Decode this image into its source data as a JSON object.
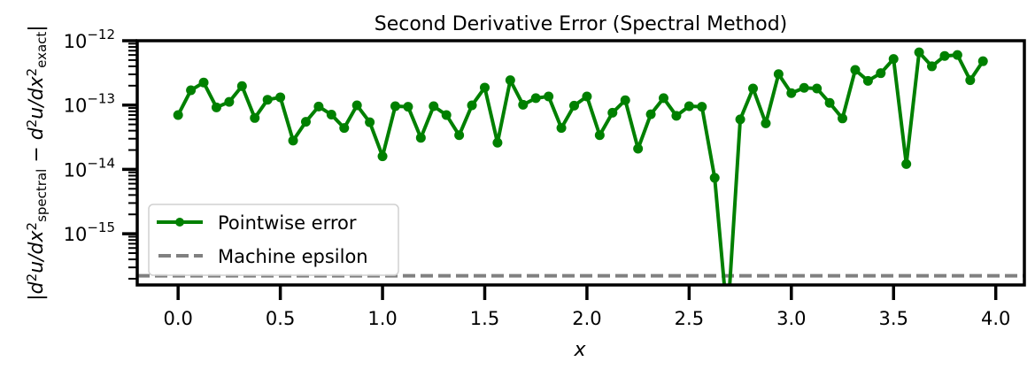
{
  "chart_data": {
    "type": "line",
    "title": "Second Derivative Error (Spectral Method)",
    "xlabel": "x",
    "ylabel_parts": [
      {
        "t": "|d",
        "s": ""
      },
      {
        "t": "2",
        "s": "sup"
      },
      {
        "t": "u/dx",
        "s": ""
      },
      {
        "t": "2",
        "s": "sup"
      },
      {
        "t": "spectral",
        "s": "sub"
      },
      {
        "t": " − d",
        "s": ""
      },
      {
        "t": "2",
        "s": "sup"
      },
      {
        "t": "u/dx",
        "s": ""
      },
      {
        "t": "2",
        "s": "sup"
      },
      {
        "t": "exact",
        "s": "sub"
      },
      {
        "t": "|",
        "s": ""
      }
    ],
    "xscale": "linear",
    "yscale": "log",
    "xlim": [
      -0.2,
      4.14
    ],
    "ylim": [
      1.6e-16,
      1e-12
    ],
    "grid": false,
    "legend_position": "lower-left",
    "x_ticks": [
      "0.0",
      "0.5",
      "1.0",
      "1.5",
      "2.0",
      "2.5",
      "3.0",
      "3.5",
      "4.0"
    ],
    "y_ticks": [
      {
        "base": "10",
        "exp": "−12",
        "value": 1e-12
      },
      {
        "base": "10",
        "exp": "−13",
        "value": 1e-13
      },
      {
        "base": "10",
        "exp": "−14",
        "value": 1e-14
      },
      {
        "base": "10",
        "exp": "−15",
        "value": 1e-15
      }
    ],
    "series": [
      {
        "name": "Pointwise error",
        "color": "#008000",
        "style": "solid-with-markers",
        "x_step": 0.0625,
        "x_start": 0,
        "values": [
          7e-14,
          1.7e-13,
          2.24e-13,
          9.2e-14,
          1.12e-13,
          1.97e-13,
          6.3e-14,
          1.21e-13,
          1.32e-13,
          2.8e-14,
          5.5e-14,
          9.5e-14,
          7.1e-14,
          4.4e-14,
          9.9e-14,
          5.4e-14,
          1.6e-14,
          9.6e-14,
          9.4e-14,
          3.1e-14,
          9.6e-14,
          7e-14,
          3.4e-14,
          9.9e-14,
          1.87e-13,
          2.6e-14,
          2.43e-13,
          1.01e-13,
          1.28e-13,
          1.36e-13,
          4.4e-14,
          9.8e-14,
          1.36e-13,
          3.4e-14,
          7.6e-14,
          1.19e-13,
          2.1e-14,
          7.2e-14,
          1.28e-13,
          6.8e-14,
          9.6e-14,
          9.4e-14,
          7.4e-15,
          0,
          6e-14,
          1.81e-13,
          5.2e-14,
          3.03e-13,
          1.53e-13,
          1.85e-13,
          1.81e-13,
          1.08e-13,
          6.2e-14,
          3.52e-13,
          2.38e-13,
          3.13e-13,
          5.2e-13,
          1.21e-14,
          6.6e-13,
          4e-13,
          5.8e-13,
          6e-13,
          2.43e-13,
          4.8e-13
        ]
      },
      {
        "name": "Machine epsilon",
        "color": "#808080",
        "style": "dashed",
        "value": 2.22e-16
      }
    ]
  }
}
